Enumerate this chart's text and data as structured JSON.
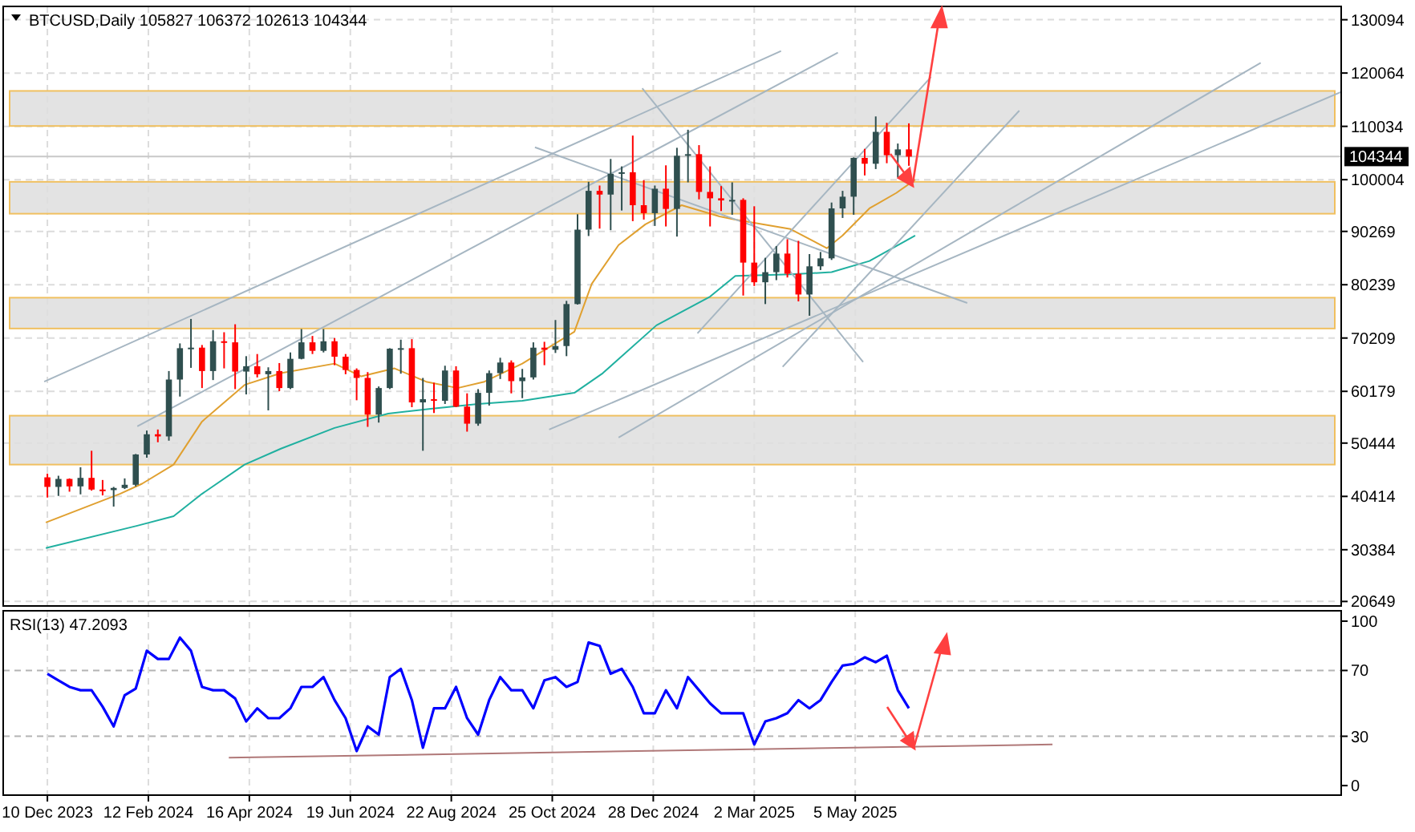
{
  "chart_data": [
    {
      "type": "candlestick",
      "title": "BTCUSD,Daily 105827 106372 102613 104344",
      "x": [
        "2023-12-10",
        "2023-12-17",
        "2023-12-24",
        "2023-12-31",
        "2024-01-07",
        "2024-01-14",
        "2024-01-21",
        "2024-01-28",
        "2024-02-04",
        "2024-02-11",
        "2024-02-18",
        "2024-02-25",
        "2024-03-03",
        "2024-03-10",
        "2024-03-17",
        "2024-03-24",
        "2024-03-31",
        "2024-04-07",
        "2024-04-14",
        "2024-04-21",
        "2024-04-28",
        "2024-05-05",
        "2024-05-12",
        "2024-05-19",
        "2024-05-26",
        "2024-06-02",
        "2024-06-09",
        "2024-06-16",
        "2024-06-23",
        "2024-06-30",
        "2024-07-07",
        "2024-07-14",
        "2024-07-21",
        "2024-07-28",
        "2024-08-04",
        "2024-08-11",
        "2024-08-18",
        "2024-08-25",
        "2024-09-01",
        "2024-09-08",
        "2024-09-15",
        "2024-09-22",
        "2024-09-29",
        "2024-10-06",
        "2024-10-13",
        "2024-10-20",
        "2024-10-27",
        "2024-11-03",
        "2024-11-10",
        "2024-11-17",
        "2024-11-24",
        "2024-12-01",
        "2024-12-08",
        "2024-12-15",
        "2024-12-22",
        "2024-12-29",
        "2025-01-05",
        "2025-01-12",
        "2025-01-19",
        "2025-01-26",
        "2025-02-02",
        "2025-02-09",
        "2025-02-16",
        "2025-02-23",
        "2025-03-02",
        "2025-03-09",
        "2025-03-16",
        "2025-03-23",
        "2025-03-30",
        "2025-04-06",
        "2025-04-13",
        "2025-04-20",
        "2025-04-27",
        "2025-05-04",
        "2025-05-11",
        "2025-05-18",
        "2025-05-25",
        "2025-06-01",
        "2025-06-08"
      ],
      "ohlc": [
        [
          44000,
          44700,
          40200,
          42200
        ],
        [
          42200,
          44300,
          40500,
          43700
        ],
        [
          43700,
          43800,
          41300,
          42300
        ],
        [
          42300,
          45900,
          40800,
          43900
        ],
        [
          43900,
          49000,
          41500,
          41700
        ],
        [
          41700,
          43500,
          40600,
          41600
        ],
        [
          41600,
          42200,
          38500,
          42000
        ],
        [
          42000,
          43800,
          41800,
          42600
        ],
        [
          42600,
          48400,
          42300,
          48300
        ],
        [
          48300,
          52800,
          47700,
          52100
        ],
        [
          52100,
          53000,
          50600,
          51700
        ],
        [
          51700,
          64000,
          50900,
          62400
        ],
        [
          62400,
          69200,
          59200,
          68300
        ],
        [
          68300,
          73800,
          64600,
          68400
        ],
        [
          68400,
          68900,
          60800,
          64000
        ],
        [
          64000,
          71700,
          62300,
          69600
        ],
        [
          69600,
          71300,
          64500,
          69400
        ],
        [
          69400,
          72800,
          60600,
          63900
        ],
        [
          63900,
          66800,
          59600,
          64900
        ],
        [
          64900,
          67200,
          62800,
          63400
        ],
        [
          63400,
          64700,
          56600,
          64000
        ],
        [
          64000,
          65500,
          60200,
          60800
        ],
        [
          60800,
          67500,
          60600,
          66300
        ],
        [
          66300,
          71900,
          66200,
          69400
        ],
        [
          69400,
          70600,
          67200,
          67800
        ],
        [
          67800,
          71900,
          67500,
          69600
        ],
        [
          69600,
          70200,
          65100,
          66700
        ],
        [
          66700,
          67200,
          63400,
          64200
        ],
        [
          64200,
          64500,
          58500,
          62700
        ],
        [
          62700,
          63800,
          53500,
          55800
        ],
        [
          55800,
          61100,
          54300,
          60800
        ],
        [
          60800,
          68300,
          60600,
          68200
        ],
        [
          68200,
          69900,
          63500,
          68300
        ],
        [
          68300,
          70000,
          57200,
          58100
        ],
        [
          58100,
          62700,
          49000,
          58700
        ],
        [
          58700,
          61800,
          56100,
          58400
        ],
        [
          58400,
          65000,
          57800,
          64100
        ],
        [
          64100,
          64900,
          57200,
          57300
        ],
        [
          57300,
          59800,
          52600,
          54100
        ],
        [
          54100,
          60600,
          53700,
          59900
        ],
        [
          59900,
          64100,
          57500,
          63600
        ],
        [
          63600,
          66500,
          62500,
          65600
        ],
        [
          65600,
          66000,
          59800,
          62100
        ],
        [
          62100,
          64400,
          58900,
          62800
        ],
        [
          62800,
          69400,
          62400,
          68400
        ],
        [
          68400,
          69500,
          65100,
          68000
        ],
        [
          68000,
          73600,
          67400,
          68700
        ],
        [
          68700,
          77200,
          66800,
          76600
        ],
        [
          76600,
          93500,
          76500,
          90600
        ],
        [
          90600,
          99600,
          89400,
          97900
        ],
        [
          97900,
          98900,
          90800,
          97200
        ],
        [
          97200,
          103900,
          90500,
          101100
        ],
        [
          101100,
          102500,
          94200,
          101400
        ],
        [
          101400,
          108300,
          92200,
          95200
        ],
        [
          95200,
          99900,
          92500,
          93700
        ],
        [
          93700,
          98900,
          91300,
          98300
        ],
        [
          98300,
          102700,
          91200,
          94500
        ],
        [
          94500,
          106000,
          89300,
          104500
        ],
        [
          104500,
          109400,
          99500,
          104800
        ],
        [
          104800,
          106500,
          96300,
          97700
        ],
        [
          97700,
          102500,
          91200,
          96500
        ],
        [
          96500,
          98800,
          94100,
          96100
        ],
        [
          96100,
          99500,
          93400,
          96200
        ],
        [
          96200,
          96500,
          78200,
          84400
        ],
        [
          84400,
          95000,
          80000,
          80700
        ],
        [
          80700,
          85300,
          76600,
          82600
        ],
        [
          82600,
          87500,
          81100,
          86100
        ],
        [
          86100,
          88800,
          81600,
          82300
        ],
        [
          82300,
          88500,
          77100,
          78400
        ],
        [
          78400,
          86000,
          74400,
          83700
        ],
        [
          83700,
          86400,
          83000,
          85200
        ],
        [
          85200,
          95700,
          84900,
          94600
        ],
        [
          94600,
          97900,
          92800,
          96800
        ],
        [
          96800,
          104200,
          93400,
          104100
        ],
        [
          104100,
          105800,
          100800,
          103000
        ],
        [
          103000,
          111900,
          102000,
          109000
        ],
        [
          109000,
          110700,
          103100,
          104600
        ],
        [
          104600,
          106800,
          100400,
          105700
        ],
        [
          105700,
          110600,
          102613,
          104344
        ]
      ],
      "series": [
        {
          "type": "line",
          "color": "#e0a030",
          "x": [
            "2023-12-09",
            "2024-01-25",
            "2024-02-08",
            "2024-02-28",
            "2024-03-17",
            "2024-04-13",
            "2024-05-06",
            "2024-06-09",
            "2024-06-26",
            "2024-07-17",
            "2024-08-06",
            "2024-08-26",
            "2024-09-12",
            "2024-10-06",
            "2024-11-08",
            "2024-11-19",
            "2024-12-06",
            "2024-12-23",
            "2025-01-15",
            "2025-02-08",
            "2025-02-18",
            "2025-03-25",
            "2025-04-17",
            "2025-04-27",
            "2025-05-14",
            "2025-05-31",
            "2025-06-12"
          ],
          "values": [
            35500,
            40900,
            42800,
            46400,
            54500,
            61400,
            63600,
            65400,
            63000,
            64500,
            62000,
            60800,
            62000,
            65400,
            71400,
            80400,
            87700,
            91600,
            95200,
            93100,
            92500,
            90700,
            87100,
            89500,
            94600,
            97500,
            100000
          ]
        },
        {
          "type": "line",
          "color": "#20b0a0",
          "x": [
            "2023-12-09",
            "2024-02-05",
            "2024-02-28",
            "2024-03-17",
            "2024-04-13",
            "2024-05-06",
            "2024-06-09",
            "2024-07-13",
            "2024-08-09",
            "2024-09-08",
            "2024-10-06",
            "2024-11-08",
            "2024-11-26",
            "2024-12-30",
            "2025-02-02",
            "2025-02-18",
            "2025-03-25",
            "2025-04-20",
            "2025-05-14",
            "2025-06-12"
          ],
          "values": [
            30700,
            34900,
            36700,
            40900,
            46400,
            49400,
            53300,
            56000,
            56900,
            57800,
            58400,
            59900,
            63600,
            72600,
            78000,
            81900,
            82200,
            82600,
            84700,
            89500
          ]
        },
        {
          "type": "line",
          "color": "#a6b6c2",
          "x": [
            "2023-12-08",
            "2025-03-19"
          ],
          "values": [
            62000,
            124200
          ]
        },
        {
          "type": "line",
          "color": "#a6b6c2",
          "x": [
            "2024-02-05",
            "2025-04-24"
          ],
          "values": [
            53600,
            123900
          ]
        },
        {
          "type": "line",
          "color": "#a6b6c2",
          "x": [
            "2024-10-14",
            "2025-07-15"
          ],
          "values": [
            106100,
            76800
          ]
        },
        {
          "type": "line",
          "color": "#a6b6c2",
          "x": [
            "2024-12-21",
            "2025-05-10"
          ],
          "values": [
            117200,
            65700
          ]
        },
        {
          "type": "line",
          "color": "#a6b6c2",
          "x": [
            "2025-01-25",
            "2025-06-22"
          ],
          "values": [
            71100,
            119300
          ]
        },
        {
          "type": "line",
          "color": "#a6b6c2",
          "x": [
            "2025-03-20",
            "2025-08-17"
          ],
          "values": [
            64800,
            113000
          ]
        },
        {
          "type": "line",
          "color": "#a6b6c2",
          "x": [
            "2024-10-23",
            "2026-03-09"
          ],
          "values": [
            53000,
            116500
          ]
        },
        {
          "type": "line",
          "color": "#a6b6c2",
          "x": [
            "2024-12-06",
            "2026-01-17"
          ],
          "values": [
            51500,
            122000
          ]
        }
      ],
      "bands": [
        {
          "axis": "y",
          "from": 110100,
          "to": 116700,
          "color": "#dedede"
        },
        {
          "axis": "y",
          "from": 93600,
          "to": 99600,
          "color": "#dedede"
        },
        {
          "axis": "y",
          "from": 72000,
          "to": 77800,
          "color": "#dedede"
        },
        {
          "axis": "y",
          "from": 46400,
          "to": 55600,
          "color": "#dedede"
        }
      ],
      "ref_lines": [
        {
          "axis": "y",
          "value": 104344,
          "label": "104344",
          "color": "#c8c8c8"
        }
      ],
      "xlim": [
        "2023-11-12",
        "2026-03-09"
      ],
      "ylim": [
        19800,
        132600
      ],
      "xticks": [
        {
          "value": "2023-12-10",
          "label": null
        },
        {
          "value": "2024-02-12",
          "label": null
        },
        {
          "value": "2024-04-16",
          "label": null
        },
        {
          "value": "2024-06-19",
          "label": null
        },
        {
          "value": "2024-08-22",
          "label": null
        },
        {
          "value": "2024-10-25",
          "label": null
        },
        {
          "value": "2024-12-28",
          "label": null
        },
        {
          "value": "2025-03-02",
          "label": null
        },
        {
          "value": "2025-05-05",
          "label": null
        }
      ],
      "yticks": [
        130094,
        120064,
        110034,
        100004,
        90269,
        80239,
        70209,
        60179,
        50444,
        40414,
        30384,
        20649
      ],
      "grid": true,
      "tick_labels": "y"
    },
    {
      "type": "line",
      "title": "RSI(13) 47.2093",
      "series": [
        {
          "color": "#0000ff",
          "x": [
            "2023-12-10",
            "2023-12-17",
            "2023-12-24",
            "2023-12-31",
            "2024-01-07",
            "2024-01-14",
            "2024-01-21",
            "2024-01-28",
            "2024-02-04",
            "2024-02-11",
            "2024-02-18",
            "2024-02-25",
            "2024-03-03",
            "2024-03-10",
            "2024-03-17",
            "2024-03-24",
            "2024-03-31",
            "2024-04-07",
            "2024-04-14",
            "2024-04-21",
            "2024-04-28",
            "2024-05-05",
            "2024-05-12",
            "2024-05-19",
            "2024-05-26",
            "2024-06-02",
            "2024-06-09",
            "2024-06-16",
            "2024-06-23",
            "2024-06-30",
            "2024-07-07",
            "2024-07-14",
            "2024-07-21",
            "2024-07-28",
            "2024-08-04",
            "2024-08-11",
            "2024-08-18",
            "2024-08-25",
            "2024-09-01",
            "2024-09-08",
            "2024-09-15",
            "2024-09-22",
            "2024-09-29",
            "2024-10-06",
            "2024-10-13",
            "2024-10-20",
            "2024-10-27",
            "2024-11-03",
            "2024-11-10",
            "2024-11-17",
            "2024-11-24",
            "2024-12-01",
            "2024-12-08",
            "2024-12-15",
            "2024-12-22",
            "2024-12-29",
            "2025-01-05",
            "2025-01-12",
            "2025-01-19",
            "2025-01-26",
            "2025-02-02",
            "2025-02-09",
            "2025-02-16",
            "2025-02-23",
            "2025-03-02",
            "2025-03-09",
            "2025-03-16",
            "2025-03-23",
            "2025-03-30",
            "2025-04-06",
            "2025-04-13",
            "2025-04-20",
            "2025-04-27",
            "2025-05-04",
            "2025-05-11",
            "2025-05-18",
            "2025-05-25",
            "2025-06-01",
            "2025-06-08"
          ],
          "values": [
            68,
            64,
            60,
            58,
            58,
            48,
            36,
            55,
            59,
            82,
            77,
            77,
            90,
            82,
            60,
            58,
            58,
            53,
            39,
            47,
            41,
            41,
            47,
            60,
            60,
            66,
            52,
            41,
            21,
            36,
            31,
            66,
            71,
            52,
            23,
            47,
            47,
            60,
            41,
            31,
            52,
            66,
            58,
            58,
            47,
            64,
            66,
            60,
            63,
            87,
            85,
            68,
            71,
            60,
            44,
            44,
            58,
            47,
            66,
            58,
            50,
            44,
            44,
            44,
            25,
            39,
            41,
            44,
            52,
            47,
            52,
            63,
            73,
            74,
            78,
            75,
            79,
            58,
            47
          ]
        },
        {
          "color": "#b07878",
          "x": [
            "2024-04-03",
            "2025-09-07"
          ],
          "values": [
            17,
            25
          ]
        }
      ],
      "ref_lines": [
        {
          "axis": "y",
          "value": 30,
          "color": "#b4b4b4",
          "line_style": "dashed"
        },
        {
          "axis": "y",
          "value": 70,
          "color": "#b4b4b4",
          "line_style": "dashed"
        }
      ],
      "xlim": [
        "2023-11-12",
        "2026-03-09"
      ],
      "ylim": [
        -5.8,
        106.3
      ],
      "xticks": [
        {
          "value": "2023-12-10",
          "label": "10 Dec 2023"
        },
        {
          "value": "2024-02-12",
          "label": "12 Feb 2024"
        },
        {
          "value": "2024-04-16",
          "label": "16 Apr 2024"
        },
        {
          "value": "2024-06-19",
          "label": "19 Jun 2024"
        },
        {
          "value": "2024-08-22",
          "label": "22 Aug 2024"
        },
        {
          "value": "2024-10-25",
          "label": "25 Oct 2024"
        },
        {
          "value": "2024-12-28",
          "label": "28 Dec 2024"
        },
        {
          "value": "2025-03-02",
          "label": "2 Mar 2025"
        },
        {
          "value": "2025-05-05",
          "label": "5 May 2025"
        }
      ],
      "yticks": [
        100,
        70,
        30,
        0
      ],
      "grid": "x"
    }
  ]
}
